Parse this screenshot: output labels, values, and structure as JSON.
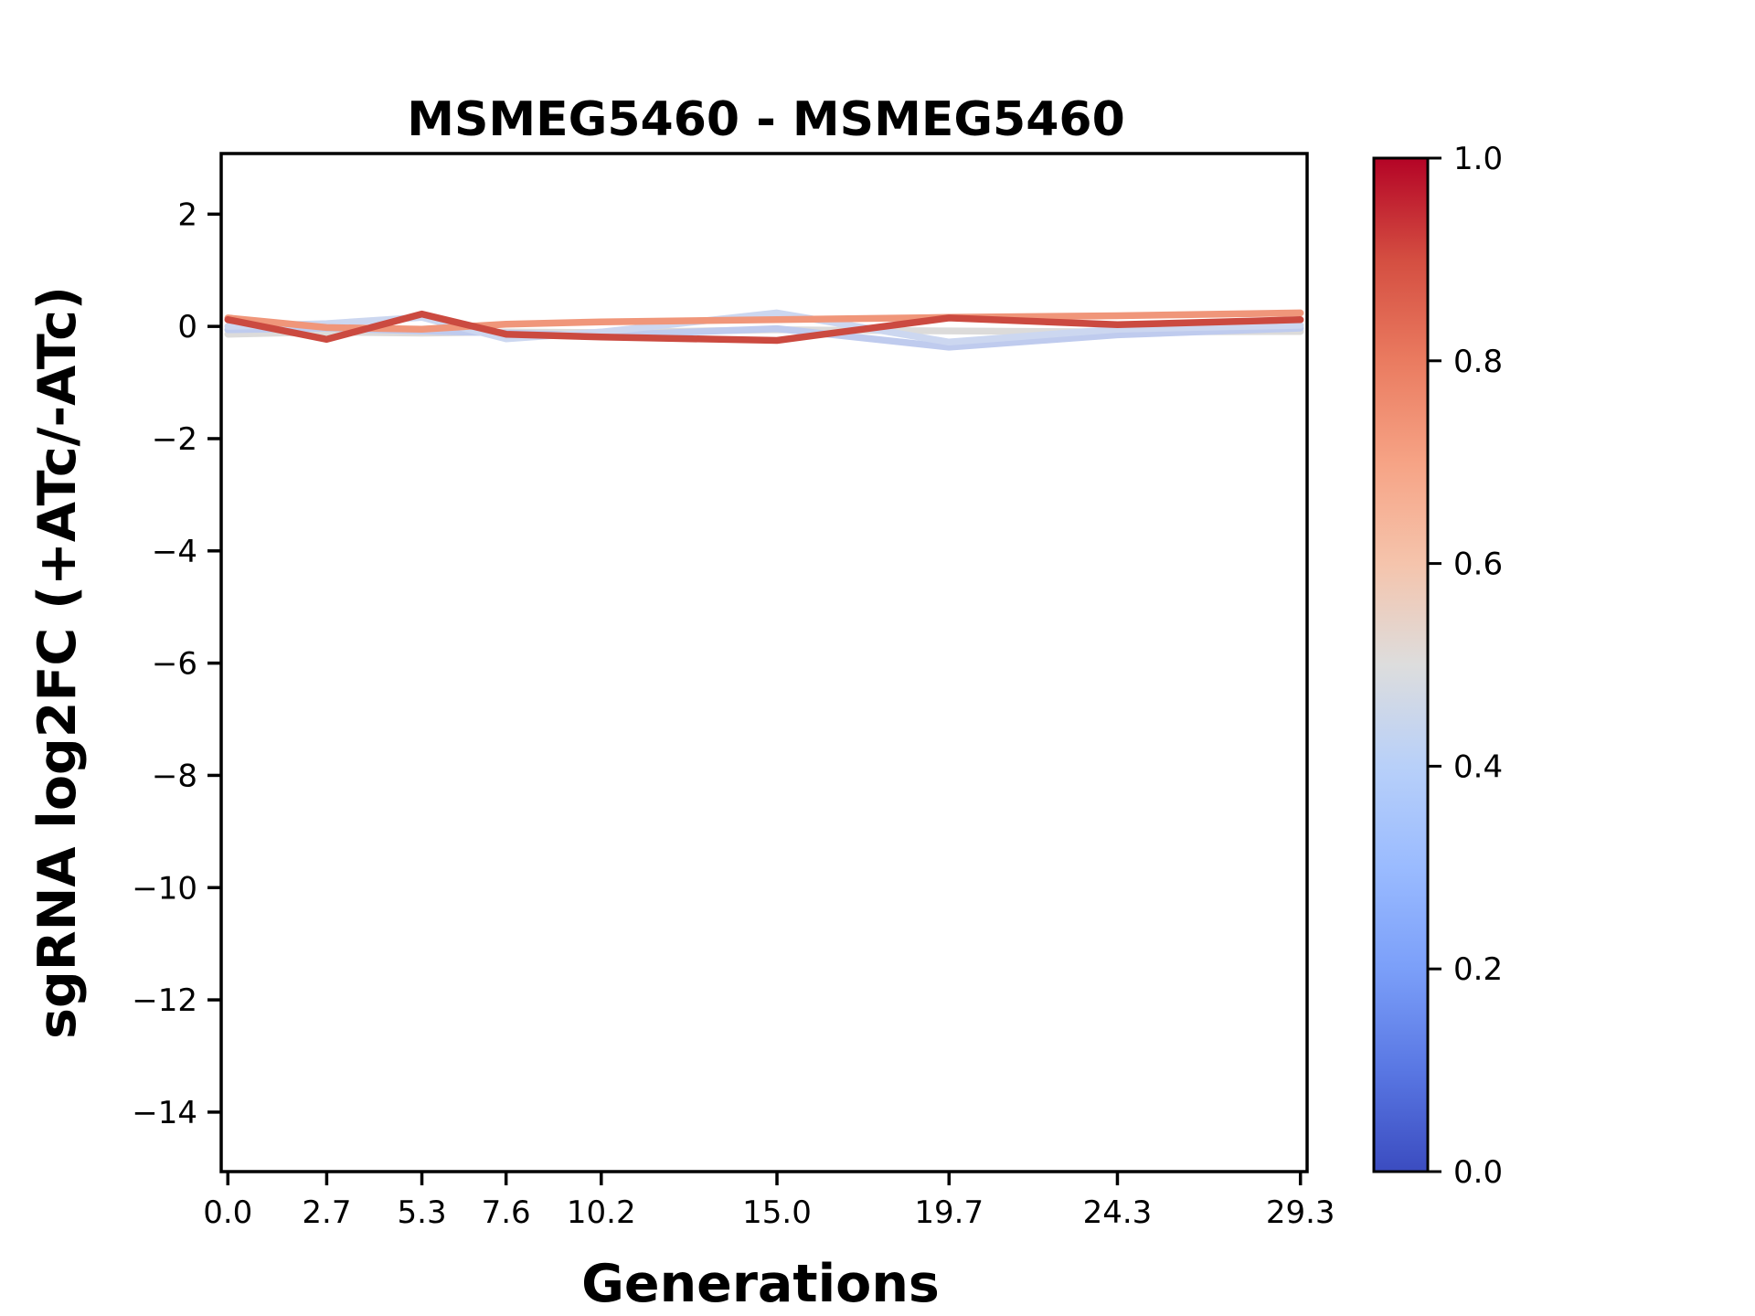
{
  "figure": {
    "background": "#ffffff"
  },
  "chart_data": {
    "type": "line",
    "title": "MSMEG5460 - MSMEG5460",
    "xlabel": "Generations",
    "ylabel": "sgRNA log2FC (+ATc/-ATc)",
    "grid": false,
    "legend": "none",
    "xlim": [
      -0.182,
      29.482
    ],
    "ylim": [
      -15.06,
      3.08
    ],
    "x": [
      0.0,
      2.7,
      5.3,
      7.6,
      10.2,
      15.0,
      19.7,
      24.3,
      29.3
    ],
    "xtick_labels": [
      "0.0",
      "2.7",
      "5.3",
      "7.6",
      "10.2",
      "15.0",
      "19.7",
      "24.3",
      "29.3"
    ],
    "ytick_values": [
      2,
      0,
      -2,
      -4,
      -6,
      -8,
      -10,
      -12,
      -14
    ],
    "ytick_labels": [
      "2",
      "0",
      "−2",
      "−4",
      "−6",
      "−8",
      "−10",
      "−12",
      "−14"
    ],
    "series": [
      {
        "name": "sgrna-trace-gray",
        "color": "#dcdbda",
        "values": [
          -0.14,
          -0.1,
          -0.12,
          -0.1,
          -0.11,
          -0.06,
          -0.08,
          -0.1,
          -0.09
        ]
      },
      {
        "name": "sgrna-trace-blue-dark",
        "color": "#bfcbee",
        "values": [
          -0.06,
          -0.03,
          -0.08,
          -0.12,
          -0.16,
          -0.04,
          -0.37,
          -0.15,
          -0.03
        ]
      },
      {
        "name": "sgrna-trace-blue-light",
        "color": "#ccd7f0",
        "values": [
          0.0,
          0.05,
          0.16,
          -0.22,
          -0.1,
          0.24,
          -0.28,
          -0.05,
          0.02
        ]
      },
      {
        "name": "sgrna-trace-salmon",
        "color": "#f0967a",
        "values": [
          0.15,
          -0.02,
          -0.05,
          0.04,
          0.08,
          0.12,
          0.16,
          0.19,
          0.24
        ]
      },
      {
        "name": "sgrna-trace-red",
        "color": "#cb4a40",
        "values": [
          0.12,
          -0.23,
          0.22,
          -0.14,
          -0.19,
          -0.25,
          0.15,
          0.03,
          0.12
        ]
      }
    ],
    "colorbar": {
      "tick_labels": [
        "1.0",
        "0.8",
        "0.6",
        "0.4",
        "0.2",
        "0.0"
      ],
      "tick_values": [
        1.0,
        0.8,
        0.6,
        0.4,
        0.2,
        0.0
      ],
      "cmap_name": "coolwarm",
      "gradient_stops": [
        [
          0.0,
          "#3b4cc0"
        ],
        [
          0.1,
          "#5977e3"
        ],
        [
          0.2,
          "#7b9ff9"
        ],
        [
          0.3,
          "#9abbff"
        ],
        [
          0.4,
          "#b8d0f9"
        ],
        [
          0.5,
          "#dddddd"
        ],
        [
          0.6,
          "#f5c4ac"
        ],
        [
          0.7,
          "#f6a385"
        ],
        [
          0.8,
          "#ea7b60"
        ],
        [
          0.9,
          "#d44e41"
        ],
        [
          1.0,
          "#b40426"
        ]
      ]
    }
  }
}
